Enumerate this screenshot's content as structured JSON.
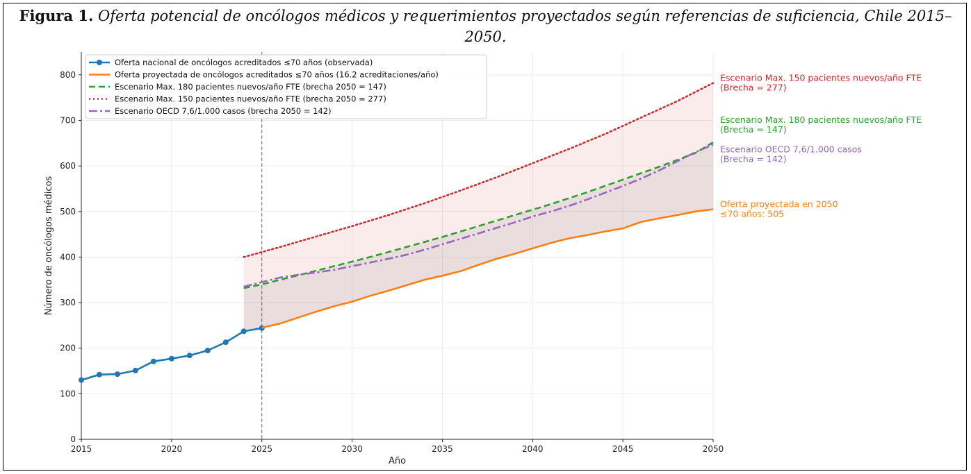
{
  "caption": {
    "label": "Figura 1.",
    "text": "Oferta potencial de oncólogos médicos y requerimientos proyectados según referencias de suficiencia, Chile 2015–2050."
  },
  "chart_data": {
    "type": "line",
    "xlabel": "Año",
    "ylabel": "Número de oncólogos médicos",
    "xlim": [
      2015,
      2050
    ],
    "ylim": [
      0,
      850
    ],
    "xticks": [
      2015,
      2020,
      2025,
      2030,
      2035,
      2040,
      2045,
      2050
    ],
    "yticks": [
      0,
      100,
      200,
      300,
      400,
      500,
      600,
      700,
      800
    ],
    "vline_x": 2025,
    "grid": true,
    "legend_position": "top-left",
    "series": [
      {
        "name": "Oferta nacional de oncólogos acreditados ≤70 años (observada)",
        "color": "#1f77b4",
        "style": "solid-marker",
        "x": [
          2015,
          2016,
          2017,
          2018,
          2019,
          2020,
          2021,
          2022,
          2023,
          2024,
          2025
        ],
        "values": [
          130,
          142,
          143,
          151,
          171,
          177,
          184,
          195,
          213,
          237,
          244
        ]
      },
      {
        "name": "Oferta proyectada de oncólogos acreditados ≤70 años (16.2 acreditaciones/año)",
        "color": "#ff7f0e",
        "style": "solid",
        "x": [
          2025,
          2026,
          2027,
          2028,
          2029,
          2030,
          2031,
          2032,
          2033,
          2034,
          2035,
          2036,
          2037,
          2038,
          2039,
          2040,
          2041,
          2042,
          2043,
          2044,
          2045,
          2046,
          2047,
          2048,
          2049,
          2050
        ],
        "values": [
          245,
          254,
          267,
          280,
          292,
          302,
          315,
          326,
          338,
          350,
          359,
          369,
          383,
          396,
          407,
          419,
          431,
          441,
          448,
          456,
          463,
          477,
          485,
          492,
          500,
          505
        ]
      },
      {
        "name": "Escenario Max. 180 pacientes nuevos/año FTE (brecha 2050 = 147)",
        "color": "#2ca02c",
        "style": "dashed",
        "x": [
          2024,
          2025,
          2026,
          2027,
          2028,
          2029,
          2030,
          2031,
          2032,
          2033,
          2034,
          2035,
          2036,
          2037,
          2038,
          2039,
          2040,
          2041,
          2042,
          2043,
          2044,
          2045,
          2046,
          2047,
          2048,
          2049,
          2050
        ],
        "values": [
          332,
          340,
          350,
          360,
          370,
          380,
          390,
          400,
          411,
          422,
          433,
          444,
          456,
          468,
          480,
          492,
          504,
          516,
          529,
          542,
          556,
          570,
          584,
          598,
          613,
          628,
          652
        ]
      },
      {
        "name": "Escenario Max. 150 pacientes nuevos/año FTE (brecha 2050 = 277)",
        "color": "#d62728",
        "style": "dotted",
        "x": [
          2024,
          2026,
          2028,
          2030,
          2032,
          2034,
          2036,
          2038,
          2040,
          2042,
          2044,
          2046,
          2048,
          2050
        ],
        "values": [
          400,
          422,
          445,
          468,
          492,
          518,
          546,
          575,
          606,
          637,
          670,
          706,
          742,
          782
        ]
      },
      {
        "name": "Escenario OECD 7,6/1.000 casos (brecha 2050 = 142)",
        "color": "#9467bd",
        "style": "dashdot",
        "x": [
          2024,
          2025,
          2026,
          2027,
          2028,
          2029,
          2030,
          2031,
          2032,
          2033,
          2034,
          2035,
          2036,
          2037,
          2038,
          2039,
          2040,
          2041,
          2042,
          2043,
          2044,
          2045,
          2046,
          2047,
          2048,
          2049,
          2050
        ],
        "values": [
          335,
          345,
          355,
          361,
          366,
          372,
          380,
          388,
          396,
          405,
          416,
          428,
          440,
          452,
          464,
          476,
          489,
          500,
          512,
          526,
          541,
          556,
          572,
          590,
          610,
          630,
          647
        ]
      }
    ],
    "annotations": [
      {
        "line1": "Escenario Max. 150 pacientes nuevos/año FTE",
        "line2": "(Brecha = 277)",
        "color": "#d62728",
        "y": 782
      },
      {
        "line1": "Escenario Max. 180 pacientes nuevos/año FTE",
        "line2": "(Brecha = 147)",
        "color": "#2ca02c",
        "y": 690
      },
      {
        "line1": "Escenario OECD 7,6/1.000 casos",
        "line2": "(Brecha = 142)",
        "color": "#9467bd",
        "y": 625
      },
      {
        "line1": "Oferta proyectada en 2050",
        "line2": "≤70 años: 505",
        "color": "#ff7f0e",
        "y": 505
      }
    ]
  }
}
